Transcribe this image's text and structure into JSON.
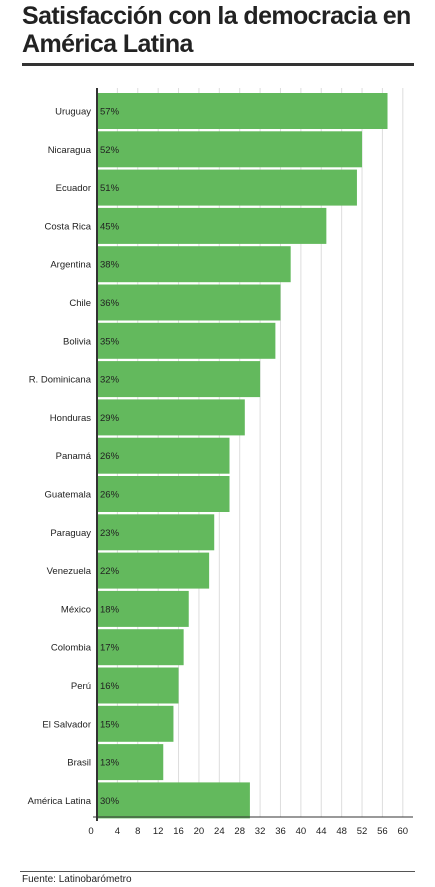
{
  "title": "Satisfacción con la democracia en América Latina",
  "source": "Fuente: Latinobarómetro",
  "colors": {
    "bar": "#63b95d",
    "axis": "#333333",
    "grid": "#dddddd",
    "text": "#222222"
  },
  "chart_data": {
    "type": "bar",
    "orientation": "horizontal",
    "title": "Satisfacción con la democracia en América Latina",
    "xlabel": "",
    "ylabel": "",
    "xlim": [
      0,
      62
    ],
    "grid": true,
    "categories": [
      "Uruguay",
      "Nicaragua",
      "Ecuador",
      "Costa Rica",
      "Argentina",
      "Chile",
      "Bolivia",
      "R. Dominicana",
      "Honduras",
      "Panamá",
      "Guatemala",
      "Paraguay",
      "Venezuela",
      "México",
      "Colombia",
      "Perú",
      "El Salvador",
      "Brasil",
      "América Latina"
    ],
    "values": [
      57,
      52,
      51,
      45,
      38,
      36,
      35,
      32,
      29,
      26,
      26,
      23,
      22,
      18,
      17,
      16,
      15,
      13,
      30
    ],
    "data_labels": [
      "57%",
      "52%",
      "51%",
      "45%",
      "38%",
      "36%",
      "35%",
      "32%",
      "29%",
      "26%",
      "26%",
      "23%",
      "22%",
      "18%",
      "17%",
      "16%",
      "15%",
      "13%",
      "30%"
    ],
    "x_ticks": [
      0,
      4,
      8,
      12,
      16,
      20,
      24,
      28,
      32,
      36,
      40,
      44,
      48,
      52,
      56,
      60
    ]
  }
}
